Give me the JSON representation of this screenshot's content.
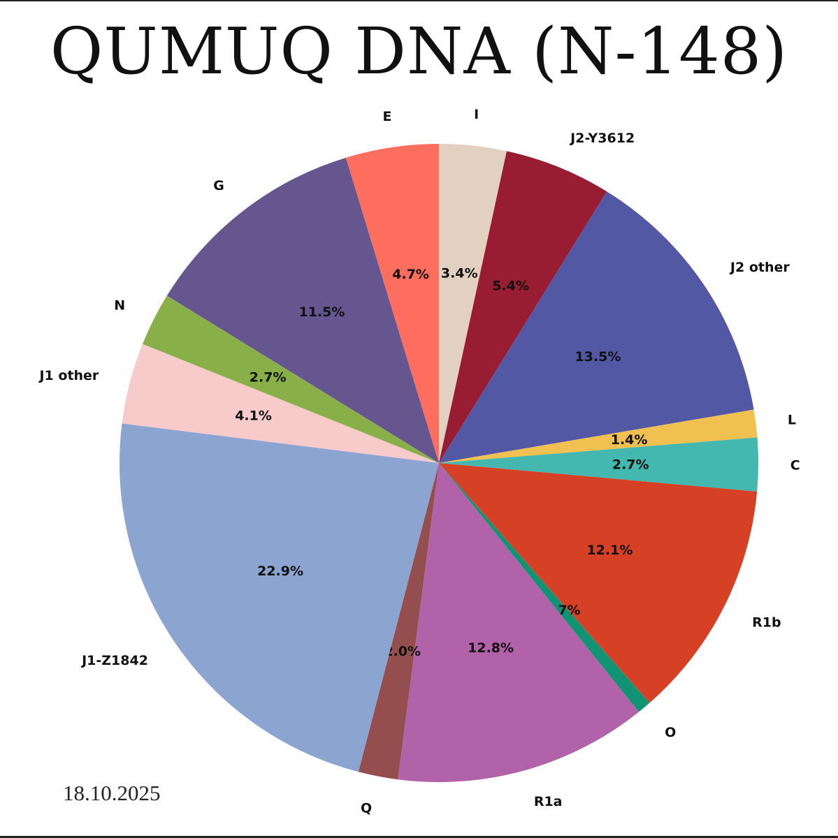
{
  "title": "QUMUQ DNA (N-148)",
  "date": "18.10.2025",
  "chart_data": {
    "type": "pie",
    "title": "QUMUQ DNA (N-148)",
    "start": "12 o'clock",
    "direction": "clockwise",
    "slices": [
      {
        "label": "I",
        "value": 3.4,
        "pct_label": "3.4%",
        "color": "#e2d0c0"
      },
      {
        "label": "J2-Y3612",
        "value": 5.4,
        "pct_label": "5.4%",
        "color": "#981c32"
      },
      {
        "label": "J2 other",
        "value": 13.5,
        "pct_label": "13.5%",
        "color": "#5258a4"
      },
      {
        "label": "L",
        "value": 1.4,
        "pct_label": "1.4%",
        "color": "#f0c050"
      },
      {
        "label": "C",
        "value": 2.7,
        "pct_label": "2.7%",
        "color": "#44b8ae"
      },
      {
        "label": "R1b",
        "value": 12.1,
        "pct_label": "12.1%",
        "color": "#d64126"
      },
      {
        "label": "O",
        "value": 0.7,
        "pct_label": "0.7%",
        "color": "#119474"
      },
      {
        "label": "R1a",
        "value": 12.8,
        "pct_label": "12.8%",
        "color": "#b262a8"
      },
      {
        "label": "Q",
        "value": 2.0,
        "pct_label": "2.0%",
        "color": "#944e4e"
      },
      {
        "label": "J1-Z1842",
        "value": 22.9,
        "pct_label": "22.9%",
        "color": "#8ca4d0"
      },
      {
        "label": "J1 other",
        "value": 4.1,
        "pct_label": "4.1%",
        "color": "#f8cbcb"
      },
      {
        "label": "N",
        "value": 2.7,
        "pct_label": "2.7%",
        "color": "#89b048"
      },
      {
        "label": "G",
        "value": 11.5,
        "pct_label": "11.5%",
        "color": "#665690"
      },
      {
        "label": "E",
        "value": 4.7,
        "pct_label": "4.7%",
        "color": "#fd6e5e"
      }
    ]
  }
}
